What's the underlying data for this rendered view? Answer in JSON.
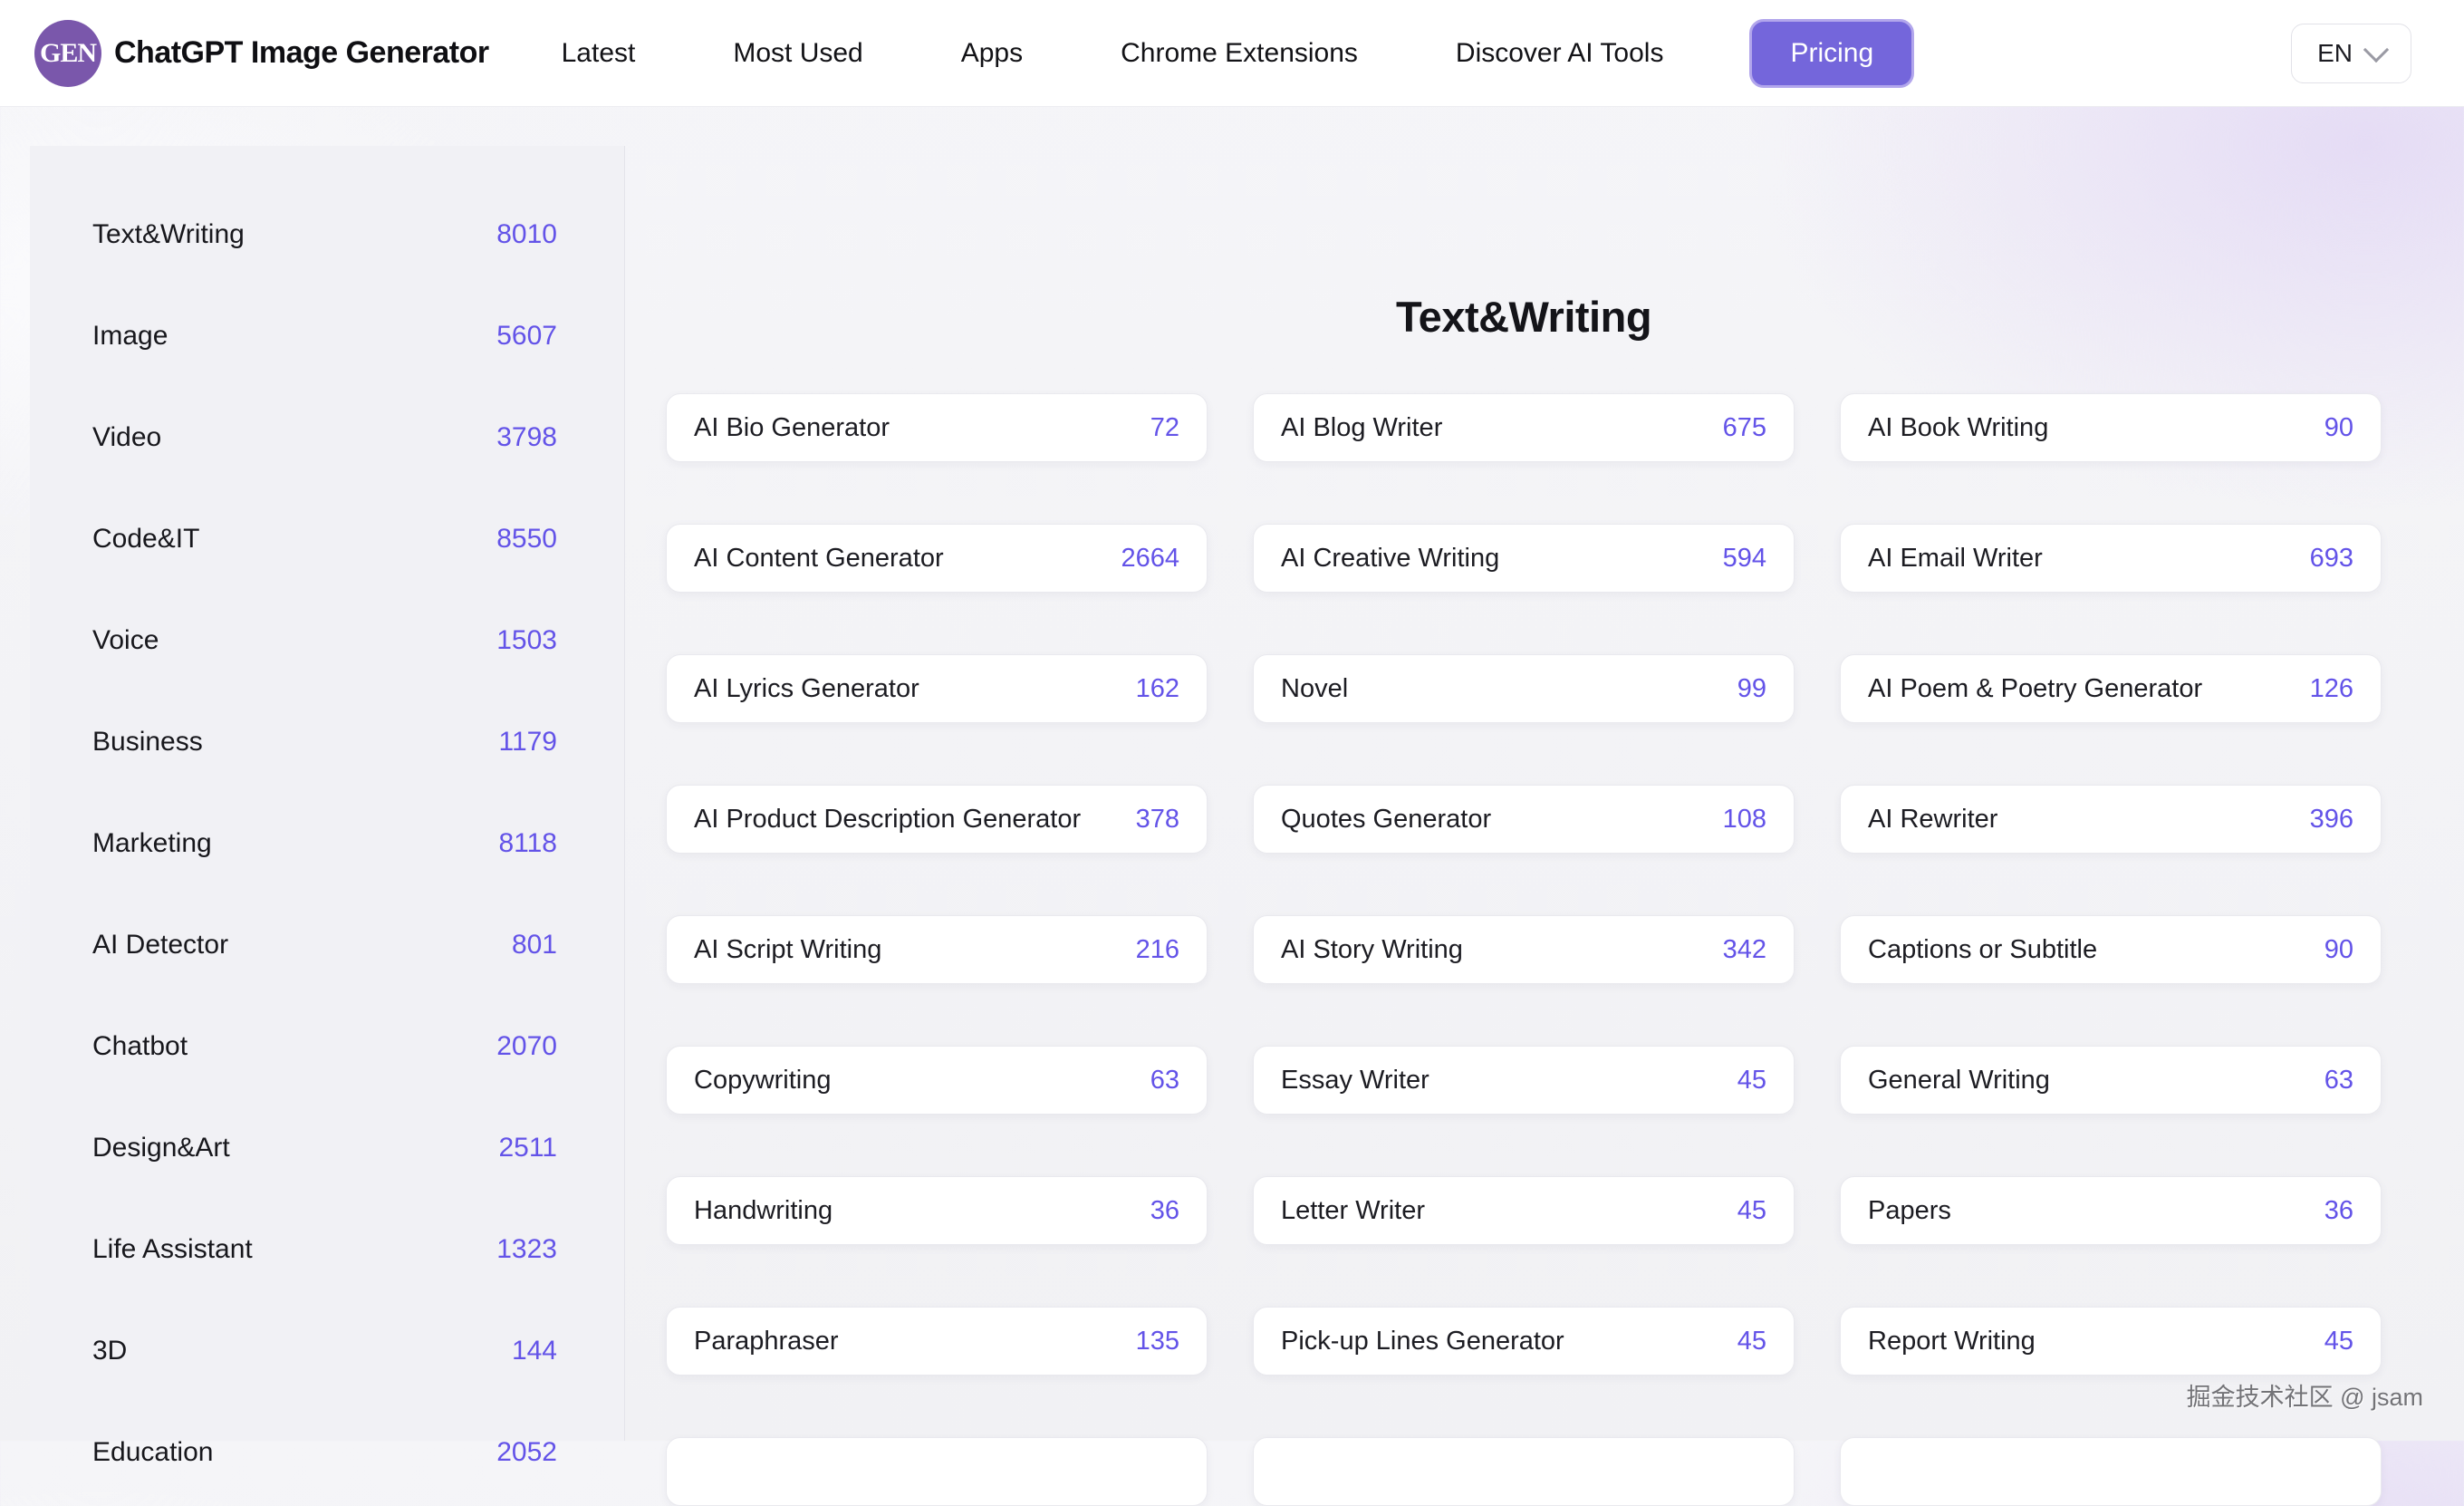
{
  "header": {
    "logo_text": "GEN",
    "brand": "ChatGPT Image Generator",
    "nav": [
      {
        "label": "Latest"
      },
      {
        "label": "Most Used"
      },
      {
        "label": "Apps"
      },
      {
        "label": "Chrome Extensions"
      },
      {
        "label": "Discover AI Tools"
      }
    ],
    "pricing_label": "Pricing",
    "language": "EN"
  },
  "sidebar": {
    "items": [
      {
        "label": "Text&Writing",
        "count": "8010"
      },
      {
        "label": "Image",
        "count": "5607"
      },
      {
        "label": "Video",
        "count": "3798"
      },
      {
        "label": "Code&IT",
        "count": "8550"
      },
      {
        "label": "Voice",
        "count": "1503"
      },
      {
        "label": "Business",
        "count": "1179"
      },
      {
        "label": "Marketing",
        "count": "8118"
      },
      {
        "label": "AI Detector",
        "count": "801"
      },
      {
        "label": "Chatbot",
        "count": "2070"
      },
      {
        "label": "Design&Art",
        "count": "2511"
      },
      {
        "label": "Life Assistant",
        "count": "1323"
      },
      {
        "label": "3D",
        "count": "144"
      },
      {
        "label": "Education",
        "count": "2052"
      }
    ]
  },
  "main": {
    "title": "Text&Writing",
    "cards": [
      {
        "label": "AI Bio Generator",
        "count": "72"
      },
      {
        "label": "AI Blog Writer",
        "count": "675"
      },
      {
        "label": "AI Book Writing",
        "count": "90"
      },
      {
        "label": "AI Content Generator",
        "count": "2664"
      },
      {
        "label": "AI Creative Writing",
        "count": "594"
      },
      {
        "label": "AI Email Writer",
        "count": "693"
      },
      {
        "label": "AI Lyrics Generator",
        "count": "162"
      },
      {
        "label": "Novel",
        "count": "99"
      },
      {
        "label": "AI Poem & Poetry Generator",
        "count": "126"
      },
      {
        "label": "AI Product Description Generator",
        "count": "378"
      },
      {
        "label": "Quotes Generator",
        "count": "108"
      },
      {
        "label": "AI Rewriter",
        "count": "396"
      },
      {
        "label": "AI Script Writing",
        "count": "216"
      },
      {
        "label": "AI Story Writing",
        "count": "342"
      },
      {
        "label": "Captions or Subtitle",
        "count": "90"
      },
      {
        "label": "Copywriting",
        "count": "63"
      },
      {
        "label": "Essay Writer",
        "count": "45"
      },
      {
        "label": "General Writing",
        "count": "63"
      },
      {
        "label": "Handwriting",
        "count": "36"
      },
      {
        "label": "Letter Writer",
        "count": "45"
      },
      {
        "label": "Papers",
        "count": "36"
      },
      {
        "label": "Paraphraser",
        "count": "135"
      },
      {
        "label": "Pick-up Lines Generator",
        "count": "45"
      },
      {
        "label": "Report Writing",
        "count": "45"
      }
    ],
    "partial_row_cards": 3
  },
  "watermark": "掘金技术社区 @ jsam",
  "colors": {
    "accent_button": "#7466db",
    "count_text": "#6353e8",
    "logo_circle": "#7a57ab",
    "sidebar_bg": "#f1f1f5",
    "page_gradient_lavender": "#e5dcf5"
  }
}
